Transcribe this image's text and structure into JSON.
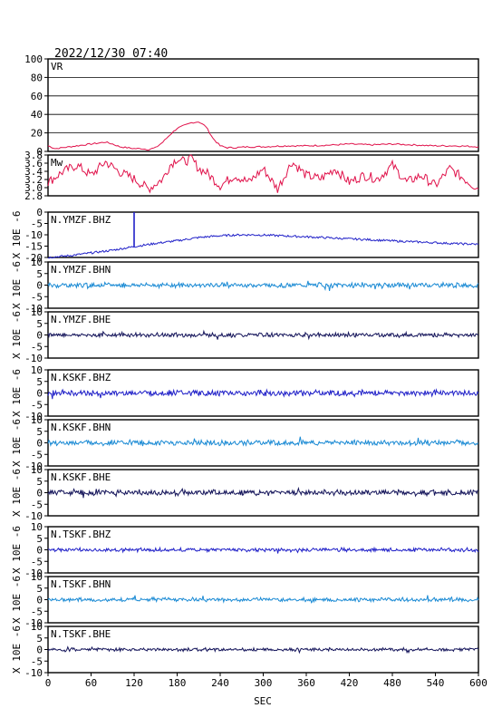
{
  "header": {
    "timestamp": "2022/12/30 07:40"
  },
  "chart_data": {
    "type": "line",
    "xlabel": "SEC",
    "xlim": [
      0,
      600
    ],
    "xticks": [
      "0",
      "60",
      "120",
      "180",
      "240",
      "300",
      "360",
      "420",
      "480",
      "540",
      "600"
    ],
    "panels": [
      {
        "id": "vr",
        "label": "VR",
        "ylim": [
          0,
          100
        ],
        "yticks": [
          "100",
          "80",
          "60",
          "40",
          "20",
          "0"
        ],
        "color": "#e0114a",
        "x": [
          0,
          10,
          20,
          30,
          40,
          50,
          60,
          70,
          80,
          90,
          100,
          110,
          120,
          130,
          140,
          150,
          160,
          170,
          180,
          190,
          200,
          210,
          220,
          230,
          240,
          250,
          260,
          280,
          300,
          330,
          360,
          400,
          420,
          450,
          480,
          510,
          540,
          570,
          600
        ],
        "y": [
          6,
          3,
          4,
          5,
          6,
          7,
          8,
          9,
          10,
          8,
          5,
          4,
          3,
          3,
          2,
          4,
          10,
          18,
          25,
          28,
          31,
          32,
          27,
          14,
          6,
          4,
          4,
          5,
          5,
          6,
          6,
          7,
          8,
          7,
          8,
          7,
          6,
          6,
          5
        ]
      },
      {
        "id": "mw",
        "label": "Mw",
        "ylim": [
          2.8,
          4.0
        ],
        "yticks": [
          "3.8",
          "3.6",
          "3.4",
          "3.2",
          "3.0",
          "2.8"
        ],
        "color": "#e0114a",
        "x": [
          0,
          20,
          40,
          60,
          80,
          100,
          120,
          140,
          160,
          170,
          180,
          190,
          200,
          210,
          220,
          230,
          240,
          260,
          280,
          300,
          320,
          340,
          360,
          380,
          400,
          420,
          440,
          460,
          480,
          500,
          520,
          540,
          560,
          580,
          600
        ],
        "y": [
          3.2,
          3.5,
          3.7,
          3.4,
          3.8,
          3.5,
          3.3,
          3.0,
          3.3,
          3.7,
          3.9,
          3.8,
          3.9,
          3.6,
          3.5,
          3.3,
          3.1,
          3.4,
          3.2,
          3.6,
          3.0,
          3.8,
          3.4,
          3.3,
          3.6,
          3.2,
          3.4,
          3.3,
          3.7,
          3.2,
          3.4,
          3.1,
          3.6,
          3.3,
          3.0
        ]
      },
      {
        "id": "ymzf-bhz",
        "label": "N.YMZF.BHZ",
        "ylim": [
          -20,
          0
        ],
        "yticks": [
          "0",
          "-5",
          "-10",
          "-15",
          "-20"
        ],
        "ylabel": "X 10E -6",
        "color": "#2020c8",
        "style": "drift",
        "x": [
          0,
          30,
          60,
          90,
          120,
          150,
          180,
          210,
          240,
          270,
          300,
          330,
          360,
          390,
          420,
          450,
          480,
          510,
          540,
          570,
          600
        ],
        "y": [
          -20,
          -19.2,
          -18,
          -16.8,
          -15.2,
          -13.8,
          -12.6,
          -11.2,
          -10.4,
          -10,
          -10.1,
          -10.5,
          -10.9,
          -11.3,
          -11.8,
          -12.2,
          -12.7,
          -13.1,
          -13.5,
          -13.9,
          -14.2
        ],
        "marker_x": 120
      },
      {
        "id": "ymzf-bhn",
        "label": "N.YMZF.BHN",
        "ylim": [
          -10,
          10
        ],
        "yticks": [
          "10",
          "5",
          "0",
          "-5",
          "-10"
        ],
        "ylabel": "X 10E -6",
        "color": "#1a8ad4",
        "style": "noise",
        "amp": 0.9
      },
      {
        "id": "ymzf-bhe",
        "label": "N.YMZF.BHE",
        "ylim": [
          -10,
          10
        ],
        "yticks": [
          "10",
          "5",
          "0",
          "-5",
          "-10"
        ],
        "ylabel": "X 10E -6",
        "color": "#14145a",
        "style": "noise",
        "amp": 0.8
      },
      {
        "id": "kskf-bhz",
        "label": "N.KSKF.BHZ",
        "ylim": [
          -10,
          10
        ],
        "yticks": [
          "10",
          "5",
          "0",
          "-5",
          "-10"
        ],
        "ylabel": "X 10E -6",
        "color": "#2020c8",
        "style": "noise",
        "amp": 1.1
      },
      {
        "id": "kskf-bhn",
        "label": "N.KSKF.BHN",
        "ylim": [
          -10,
          10
        ],
        "yticks": [
          "10",
          "5",
          "0",
          "-5",
          "-10"
        ],
        "ylabel": "X 10E -6",
        "color": "#1a8ad4",
        "style": "noise",
        "amp": 1.0
      },
      {
        "id": "kskf-bhe",
        "label": "N.KSKF.BHE",
        "ylim": [
          -10,
          10
        ],
        "yticks": [
          "10",
          "5",
          "0",
          "-5",
          "-10"
        ],
        "ylabel": "X 10E -6",
        "color": "#14145a",
        "style": "noise",
        "amp": 1.0
      },
      {
        "id": "tskf-bhz",
        "label": "N.TSKF.BHZ",
        "ylim": [
          -10,
          10
        ],
        "yticks": [
          "10",
          "5",
          "0",
          "-5",
          "-10"
        ],
        "ylabel": "X 10E -6",
        "color": "#2020c8",
        "style": "noise",
        "amp": 0.7
      },
      {
        "id": "tskf-bhn",
        "label": "N.TSKF.BHN",
        "ylim": [
          -10,
          10
        ],
        "yticks": [
          "10",
          "5",
          "0",
          "-5",
          "-10"
        ],
        "ylabel": "X 10E -6",
        "color": "#1a8ad4",
        "style": "noise",
        "amp": 0.7
      },
      {
        "id": "tskf-bhe",
        "label": "N.TSKF.BHE",
        "ylim": [
          -10,
          10
        ],
        "yticks": [
          "10",
          "5",
          "0",
          "-5",
          "-10"
        ],
        "ylabel": "X 10E -6",
        "color": "#14145a",
        "style": "noise",
        "amp": 0.6
      }
    ]
  }
}
